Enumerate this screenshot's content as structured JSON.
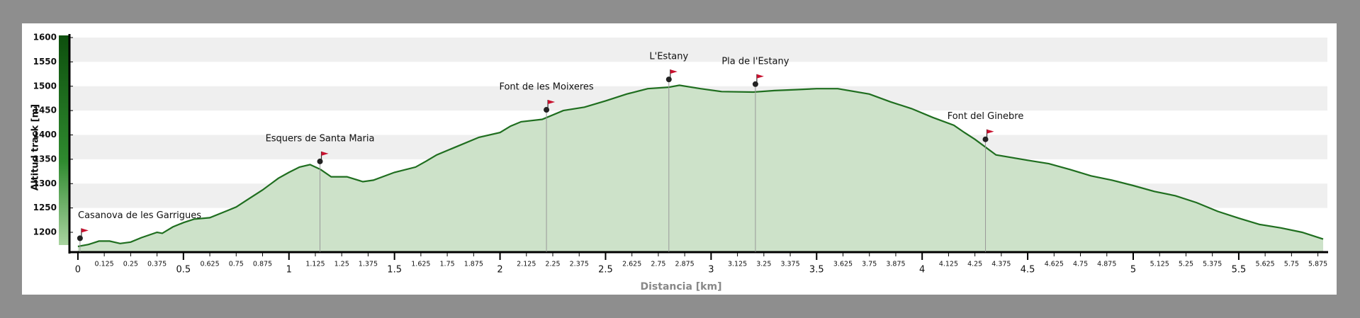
{
  "chart_data": {
    "type": "area",
    "x_label": "Distancia [km]",
    "y_label": "Altitud track [m]",
    "x": [
      0,
      0.05,
      0.1,
      0.15,
      0.2,
      0.25,
      0.3,
      0.375,
      0.4,
      0.45,
      0.5,
      0.55,
      0.625,
      0.7,
      0.75,
      0.8,
      0.875,
      0.95,
      1.0,
      1.05,
      1.1,
      1.15,
      1.2,
      1.275,
      1.35,
      1.4,
      1.5,
      1.6,
      1.65,
      1.7,
      1.8,
      1.9,
      2.0,
      2.05,
      2.1,
      2.2,
      2.3,
      2.4,
      2.5,
      2.6,
      2.7,
      2.8,
      2.85,
      2.95,
      3.05,
      3.2,
      3.3,
      3.4,
      3.5,
      3.6,
      3.75,
      3.85,
      3.95,
      4.05,
      4.15,
      4.2,
      4.25,
      4.35,
      4.5,
      4.6,
      4.7,
      4.8,
      4.9,
      5.0,
      5.1,
      5.2,
      5.3,
      5.4,
      5.5,
      5.6,
      5.7,
      5.8,
      5.9
    ],
    "values": [
      1171,
      1175,
      1182,
      1182,
      1177,
      1180,
      1189,
      1200,
      1198,
      1211,
      1220,
      1227,
      1230,
      1243,
      1252,
      1266,
      1287,
      1311,
      1323,
      1334,
      1339,
      1329,
      1314,
      1314,
      1304,
      1307,
      1323,
      1334,
      1346,
      1359,
      1377,
      1395,
      1405,
      1418,
      1427,
      1432,
      1450,
      1457,
      1470,
      1484,
      1495,
      1498,
      1502,
      1495,
      1489,
      1488,
      1491,
      1493,
      1495,
      1495,
      1484,
      1468,
      1454,
      1436,
      1420,
      1405,
      1391,
      1359,
      1348,
      1341,
      1329,
      1316,
      1307,
      1296,
      1284,
      1275,
      1261,
      1243,
      1229,
      1216,
      1209,
      1200,
      1186
    ],
    "line_color": "#1f6e1f",
    "fill_color": "#cde2c9",
    "xlim": [
      -0.04,
      5.92
    ],
    "ylim": [
      1160,
      1600
    ],
    "xticks": [
      0,
      0.125,
      0.25,
      0.375,
      0.5,
      0.625,
      0.75,
      0.875,
      1,
      1.125,
      1.25,
      1.375,
      1.5,
      1.625,
      1.75,
      1.875,
      2,
      2.125,
      2.25,
      2.375,
      2.5,
      2.625,
      2.75,
      2.875,
      3,
      3.125,
      3.25,
      3.375,
      3.5,
      3.625,
      3.75,
      3.875,
      4,
      4.125,
      4.25,
      4.375,
      4.5,
      4.625,
      4.75,
      4.875,
      5,
      5.125,
      5.25,
      5.375,
      5.5,
      5.625,
      5.75,
      5.875
    ],
    "yticks": [
      1200,
      1250,
      1300,
      1350,
      1400,
      1450,
      1500,
      1550,
      1600
    ],
    "grid": "bands",
    "annotations": [
      {
        "text": "Casanova de les Garrigues",
        "x": 0.01
      },
      {
        "text": "Esquers de Santa Maria",
        "x": 1.147
      },
      {
        "text": "Font de les Moixeres",
        "x": 2.22
      },
      {
        "text": "L'Estany",
        "x": 2.8
      },
      {
        "text": "Pla de l'Estany",
        "x": 3.21
      },
      {
        "text": "Font del Ginebre",
        "x": 4.3
      }
    ]
  }
}
